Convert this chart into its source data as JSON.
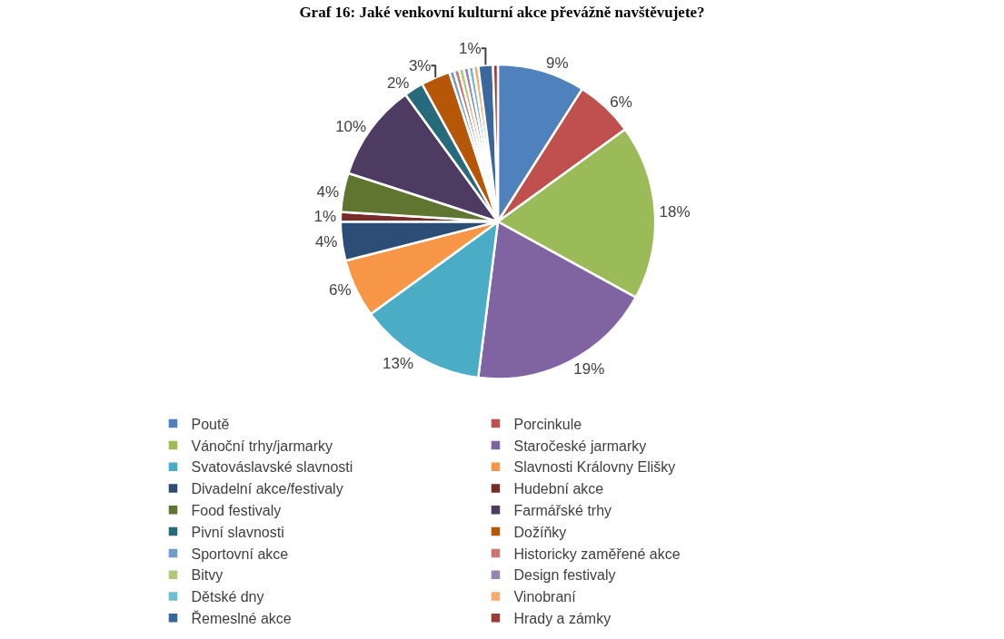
{
  "chart_data": {
    "type": "pie",
    "title": "Graf 16: Jaké venkovní kulturní akce převážně navštěvujete?",
    "categories": [
      "Poutě",
      "Porcinkule",
      "Vánoční trhy/jarmarky",
      "Staročeské jarmarky",
      "Svatováslavské slavnosti",
      "Slavnosti Královny Elišky",
      "Divadelní akce/festivaly",
      "Hudební akce",
      "Food festivaly",
      "Farmářské trhy",
      "Pivní slavnosti",
      "Dožíňky",
      "Sportovní akce",
      "Historicky zaměřené akce",
      "Bitvy",
      "Design festivaly",
      "Dětské dny",
      "Vinobraní",
      "Řemeslné akce",
      "Hrady a zámky"
    ],
    "values": [
      9,
      6,
      18,
      19,
      13,
      6,
      4,
      1,
      4,
      10,
      2,
      3,
      0.5,
      0.5,
      0.5,
      0.5,
      0.5,
      0.5,
      1.5,
      0.5
    ],
    "value_labels": [
      "9%",
      "6%",
      "18%",
      "19%",
      "13%",
      "6%",
      "4%",
      "1%",
      "4%",
      "10%",
      "2%",
      "3%",
      null,
      null,
      null,
      null,
      null,
      null,
      "1%",
      null
    ],
    "colors": [
      "#4f81bd",
      "#c0504d",
      "#9bbb59",
      "#8064a2",
      "#4bacc6",
      "#f79646",
      "#2c4d75",
      "#772c2a",
      "#5f7530",
      "#4d3b62",
      "#276a7c",
      "#b65708",
      "#729aca",
      "#cd7371",
      "#afc97a",
      "#9983b5",
      "#6fbdd1",
      "#f9ab6b",
      "#3a679c",
      "#9e3b38"
    ],
    "legend": "bottom"
  }
}
